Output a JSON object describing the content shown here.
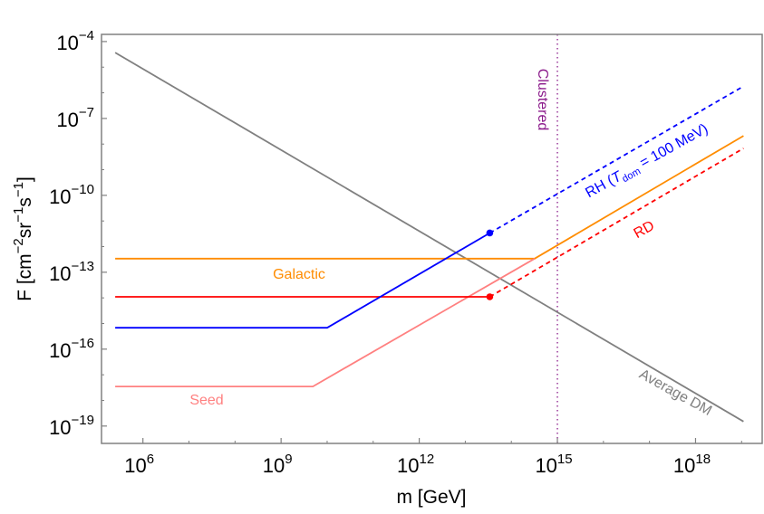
{
  "chart_data": {
    "type": "line",
    "xlabel": "m [GeV]",
    "ylabel": "F [cm⁻²sr⁻¹s⁻¹]",
    "ylabel_parts": {
      "base": "F [cm",
      "e1": "−2",
      "mid1": "sr",
      "e2": "−1",
      "mid2": "s",
      "e3": "−1",
      "end": "]"
    },
    "xscale": "log",
    "yscale": "log",
    "xlim": [
      126000.0,
      2.8e+19
    ],
    "ylim": [
      2.1e-20,
      0.00019
    ],
    "grid": false,
    "xticks": [
      {
        "exp": 6,
        "label": "10",
        "sup": "6"
      },
      {
        "exp": 9,
        "label": "10",
        "sup": "9"
      },
      {
        "exp": 12,
        "label": "10",
        "sup": "12"
      },
      {
        "exp": 15,
        "label": "10",
        "sup": "15"
      },
      {
        "exp": 18,
        "label": "10",
        "sup": "18"
      }
    ],
    "yticks": [
      {
        "exp": -4,
        "label": "10",
        "sup": "−4"
      },
      {
        "exp": -7,
        "label": "10",
        "sup": "−7"
      },
      {
        "exp": -10,
        "label": "10",
        "sup": "−10"
      },
      {
        "exp": -13,
        "label": "10",
        "sup": "−13"
      },
      {
        "exp": -16,
        "label": "10",
        "sup": "−16"
      },
      {
        "exp": -19,
        "label": "10",
        "sup": "−19"
      }
    ],
    "series": [
      {
        "name": "Average DM",
        "color": "#808080",
        "style": "solid",
        "points": [
          [
            250000.0,
            3.7e-05
          ],
          [
            1.1e+19,
            1.5e-19
          ]
        ]
      },
      {
        "name": "Galactic",
        "color": "#ff8c00",
        "style": "solid",
        "points": [
          [
            250000.0,
            3.4e-13
          ],
          [
            320000000000000.0,
            3.4e-13
          ],
          [
            1.1e+19,
            2.1e-08
          ]
        ]
      },
      {
        "name": "Seed",
        "color": "#ff8080",
        "style": "solid",
        "points": [
          [
            250000.0,
            3.5e-18
          ],
          [
            4900000000.0,
            3.5e-18
          ],
          [
            320000000000000.0,
            3.4e-13
          ]
        ]
      },
      {
        "name": "RD",
        "color": "#ff0000",
        "style": "solid",
        "points": [
          [
            250000.0,
            1.1e-14
          ],
          [
            34000000000000.0,
            1.1e-14
          ]
        ]
      },
      {
        "name": "RD",
        "color": "#ff0000",
        "style": "dashed",
        "points": [
          [
            34000000000000.0,
            1.1e-14
          ],
          [
            1.1e+19,
            6.8e-09
          ]
        ]
      },
      {
        "name": "RH",
        "color": "#0000ff",
        "style": "solid",
        "points": [
          [
            250000.0,
            6.8e-16
          ],
          [
            10000000000.0,
            6.8e-16
          ],
          [
            34000000000000.0,
            3.4e-12
          ]
        ]
      },
      {
        "name": "RH",
        "color": "#0000ff",
        "style": "dashed",
        "points": [
          [
            34000000000000.0,
            3.4e-12
          ],
          [
            1.1e+19,
            1.8e-06
          ]
        ]
      }
    ],
    "markers": [
      {
        "color": "#0000ff",
        "x": 34000000000000.0,
        "y": 3.4e-12
      },
      {
        "color": "#ff0000",
        "x": 34000000000000.0,
        "y": 1.1e-14
      }
    ],
    "vlines": [
      {
        "x": 1000000000000000.0,
        "color": "#8b1a8b",
        "style": "dotted",
        "label": "Clustered"
      }
    ],
    "annotations": {
      "galactic": {
        "text": "Galactic",
        "color": "#ff8c00"
      },
      "seed": {
        "text": "Seed",
        "color": "#ff8080"
      },
      "rd": {
        "text": "RD",
        "color": "#ff0000"
      },
      "average_dm": {
        "text": "Average DM",
        "color": "#808080"
      },
      "clustered": {
        "text": "Clustered",
        "color": "#8b1a8b"
      },
      "rh": {
        "pre": "RH (",
        "T": "T",
        "sub": "dom",
        "post": " = 100 MeV)",
        "color": "#0000ff"
      }
    }
  }
}
